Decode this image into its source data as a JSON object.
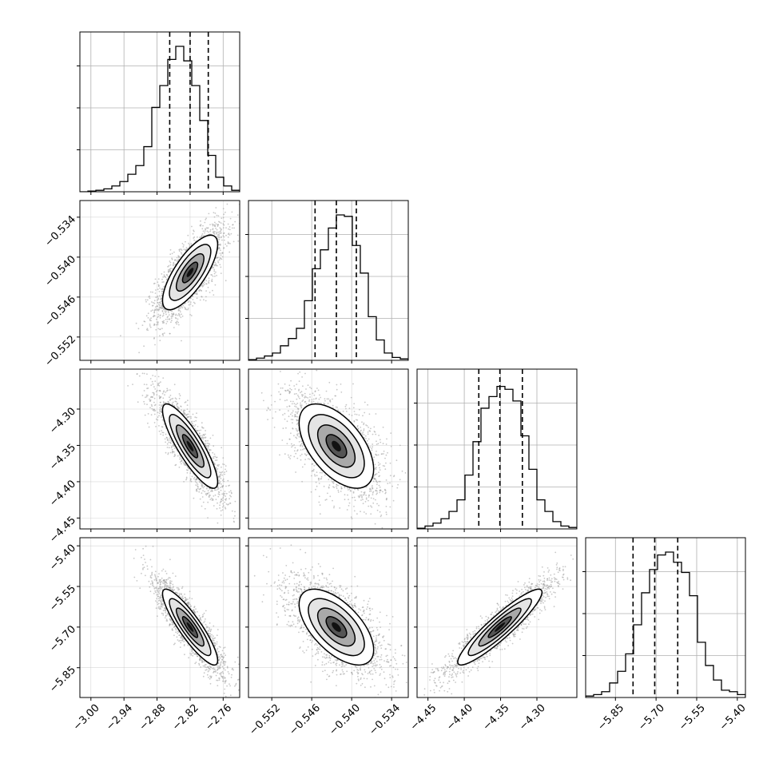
{
  "chart_data": {
    "type": "corner",
    "description_free": true,
    "parameters": [
      {
        "range": [
          -3.02,
          -2.73
        ],
        "ticks": [
          "−3.00",
          "−2.94",
          "−2.88",
          "−2.82",
          "−2.76"
        ],
        "tick_values": [
          -3.0,
          -2.94,
          -2.88,
          -2.82,
          -2.76
        ],
        "quantiles": [
          -2.857,
          -2.82,
          -2.787
        ],
        "mean": -2.82,
        "sd": 0.025,
        "hist": [
          0,
          0.005,
          0.01,
          0.02,
          0.04,
          0.07,
          0.12,
          0.18,
          0.31,
          0.58,
          0.73,
          0.91,
          1.0,
          0.9,
          0.73,
          0.49,
          0.25,
          0.1,
          0.04,
          0.01
        ]
      },
      {
        "range": [
          -0.5555,
          -0.5315
        ],
        "ticks": [
          "−0.552",
          "−0.546",
          "−0.540",
          "−0.534"
        ],
        "tick_values": [
          -0.552,
          -0.546,
          -0.54,
          -0.534
        ],
        "quantiles": [
          -0.5455,
          -0.5423,
          -0.5393
        ],
        "mean": -0.5423,
        "sd": 0.0028,
        "hist": [
          0.005,
          0.015,
          0.03,
          0.05,
          0.1,
          0.15,
          0.22,
          0.41,
          0.63,
          0.76,
          0.91,
          1.0,
          0.99,
          0.79,
          0.6,
          0.3,
          0.14,
          0.05,
          0.02,
          0.01
        ]
      },
      {
        "range": [
          -4.465,
          -4.245
        ],
        "ticks": [
          "−4.45",
          "−4.40",
          "−4.35",
          "−4.30"
        ],
        "tick_values": [
          -4.45,
          -4.4,
          -4.35,
          -4.3
        ],
        "quantiles": [
          -4.38,
          -4.351,
          -4.32
        ],
        "mean": -4.351,
        "sd": 0.029,
        "hist": [
          0.005,
          0.02,
          0.04,
          0.07,
          0.12,
          0.2,
          0.37,
          0.6,
          0.83,
          0.91,
          0.98,
          0.96,
          0.88,
          0.64,
          0.41,
          0.2,
          0.12,
          0.05,
          0.02,
          0.01
        ]
      },
      {
        "range": [
          -5.96,
          -5.37
        ],
        "ticks": [
          "−5.85",
          "−5.70",
          "−5.55",
          "−5.40"
        ],
        "tick_values": [
          -5.85,
          -5.7,
          -5.55,
          -5.4
        ],
        "quantiles": [
          -5.785,
          -5.705,
          -5.62
        ],
        "mean": -5.7,
        "sd": 0.07,
        "hist": [
          0.01,
          0.02,
          0.04,
          0.1,
          0.18,
          0.3,
          0.5,
          0.72,
          0.88,
          0.98,
          1.0,
          0.93,
          0.86,
          0.7,
          0.38,
          0.22,
          0.12,
          0.05,
          0.04,
          0.02
        ]
      }
    ],
    "correlations": [
      {
        "i": 1,
        "j": 0,
        "rho": 0.75
      },
      {
        "i": 2,
        "j": 0,
        "rho": -0.85
      },
      {
        "i": 2,
        "j": 1,
        "rho": -0.55
      },
      {
        "i": 3,
        "j": 0,
        "rho": -0.88
      },
      {
        "i": 3,
        "j": 1,
        "rho": -0.6
      },
      {
        "i": 3,
        "j": 2,
        "rho": 0.92
      }
    ],
    "grid": true,
    "colors": {
      "line": "#000000",
      "grid": "#b0b0b0",
      "scatter": "#9a9a9a",
      "density_dark": "#111111",
      "background": "#ffffff"
    }
  }
}
